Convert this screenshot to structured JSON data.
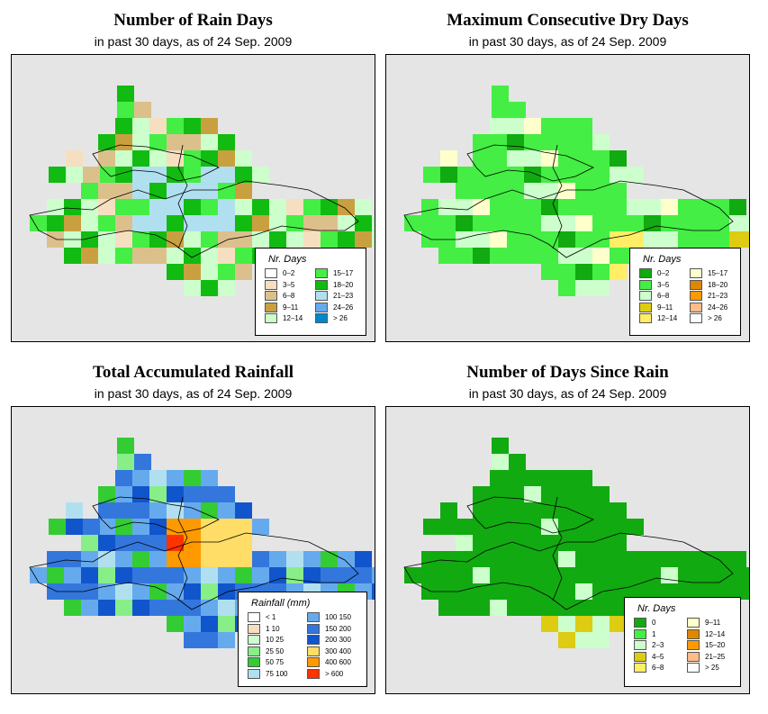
{
  "chart_data": [
    {
      "type": "heatmap",
      "title": "Number of Rain Days",
      "subtitle": "in past 30 days, as of  24 Sep. 2009",
      "legend": {
        "title": "Nr. Days",
        "placement": "bottom-right",
        "items": [
          {
            "label": "0–2",
            "color": "#ffffff"
          },
          {
            "label": "3–5",
            "color": "#f5dfc0"
          },
          {
            "label": "6–8",
            "color": "#dcc08c"
          },
          {
            "label": "9–11",
            "color": "#c9a040"
          },
          {
            "label": "12–14",
            "color": "#ccffcc"
          },
          {
            "label": "15–17",
            "color": "#44ee44"
          },
          {
            "label": "18–20",
            "color": "#11bb11"
          },
          {
            "label": "21–23",
            "color": "#b0e0f0"
          },
          {
            "label": "24–26",
            "color": "#66aaee"
          },
          {
            "label": "> 26",
            "color": "#0088cc"
          }
        ]
      }
    },
    {
      "type": "heatmap",
      "title": "Maximum Consecutive Dry Days",
      "subtitle": "in past 30 days, as of  24 Sep. 2009",
      "legend": {
        "title": "Nr. Days",
        "placement": "bottom-right",
        "items": [
          {
            "label": "0–2",
            "color": "#11aa11"
          },
          {
            "label": "3–5",
            "color": "#44ee44"
          },
          {
            "label": "6–8",
            "color": "#ccffcc"
          },
          {
            "label": "9–11",
            "color": "#ddcc11"
          },
          {
            "label": "12–14",
            "color": "#ffee66"
          },
          {
            "label": "15–17",
            "color": "#ffffcc"
          },
          {
            "label": "18–20",
            "color": "#dd8800"
          },
          {
            "label": "21–23",
            "color": "#ff9900"
          },
          {
            "label": "24–26",
            "color": "#ffbb88"
          },
          {
            "label": "> 26",
            "color": "#ffffff"
          }
        ]
      }
    },
    {
      "type": "heatmap",
      "title": "Total Accumulated Rainfall",
      "subtitle": "in past 30 days, as of  24 Sep. 2009",
      "legend": {
        "title": "Rainfall (mm)",
        "placement": "bottom-right",
        "items": [
          {
            "label": "< 1",
            "color": "#ffffff"
          },
          {
            "label": "1   10",
            "color": "#f5dfc0"
          },
          {
            "label": "10   25",
            "color": "#ccffcc"
          },
          {
            "label": "25   50",
            "color": "#88ee88"
          },
          {
            "label": "50   75",
            "color": "#33cc33"
          },
          {
            "label": "75   100",
            "color": "#b0e0f0"
          },
          {
            "label": "100   150",
            "color": "#66aaee"
          },
          {
            "label": "150   200",
            "color": "#3377dd"
          },
          {
            "label": "200   300",
            "color": "#1155cc"
          },
          {
            "label": "300   400",
            "color": "#ffdd66"
          },
          {
            "label": "400   600",
            "color": "#ff9900"
          },
          {
            "label": "> 600",
            "color": "#ff3300"
          }
        ]
      }
    },
    {
      "type": "heatmap",
      "title": "Number of Days Since Rain",
      "subtitle": "in past 30 days, as of  24 Sep. 2009",
      "legend": {
        "title": "Nr. Days",
        "placement": "bottom-right",
        "items": [
          {
            "label": "0",
            "color": "#11aa11"
          },
          {
            "label": "1",
            "color": "#44ee44"
          },
          {
            "label": "2–3",
            "color": "#ccffcc"
          },
          {
            "label": "4–5",
            "color": "#ddcc11"
          },
          {
            "label": "6–8",
            "color": "#ffee66"
          },
          {
            "label": "9–11",
            "color": "#ffffcc"
          },
          {
            "label": "12–14",
            "color": "#dd8800"
          },
          {
            "label": "15–20",
            "color": "#ff9900"
          },
          {
            "label": "21–25",
            "color": "#ffbb88"
          },
          {
            "label": "> 25",
            "color": "#ffffff"
          }
        ]
      }
    }
  ]
}
